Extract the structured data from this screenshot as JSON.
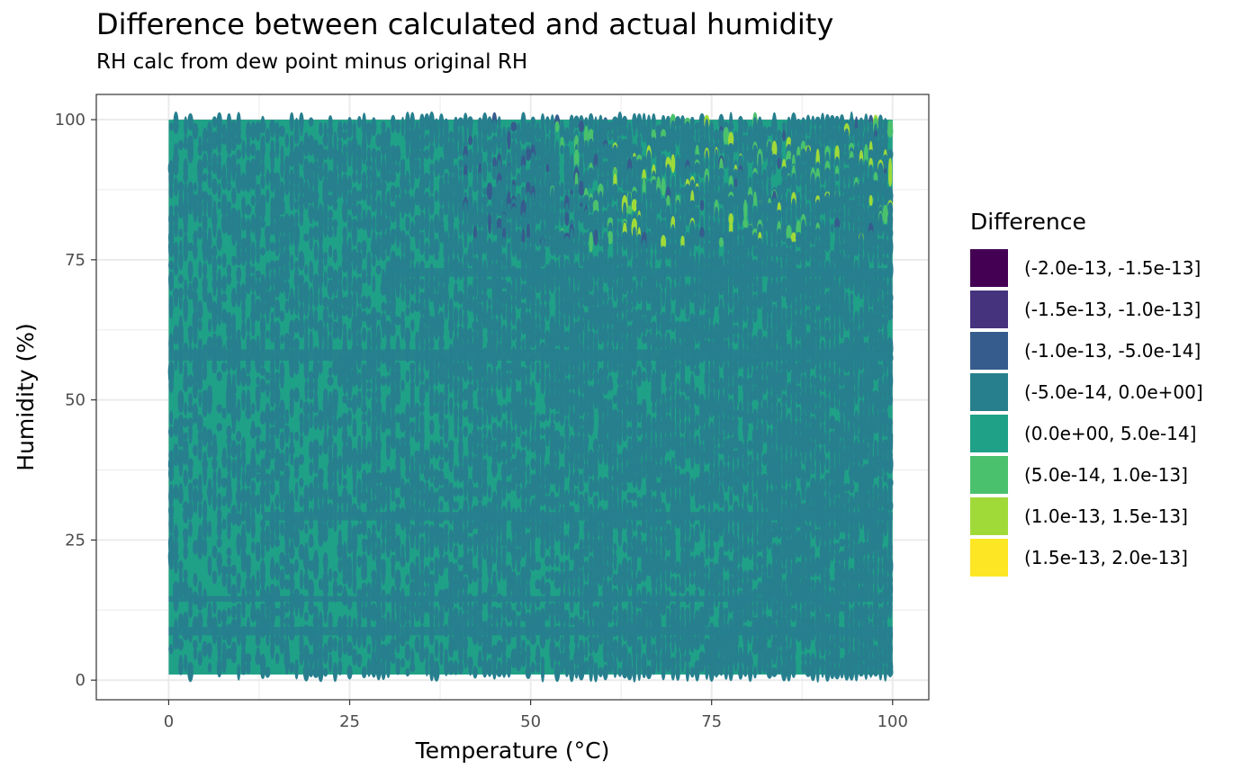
{
  "chart_data": {
    "type": "heatmap",
    "title": "Difference between calculated and actual humidity",
    "subtitle": "RH calc from dew point minus original RH",
    "xlabel": "Temperature (°C)",
    "ylabel": "Humidity (%)",
    "xlim": [
      -10,
      105
    ],
    "ylim": [
      -3.5,
      104.5
    ],
    "data_extent": {
      "x": [
        0,
        100
      ],
      "y": [
        1,
        100
      ]
    },
    "x_ticks": [
      0,
      25,
      50,
      75,
      100
    ],
    "y_ticks": [
      0,
      25,
      50,
      75,
      100
    ],
    "x_tick_labels": [
      "0",
      "25",
      "50",
      "75",
      "100"
    ],
    "y_tick_labels": [
      "0",
      "25",
      "50",
      "75",
      "100"
    ],
    "grid": true,
    "legend": {
      "title": "Difference",
      "position": "right",
      "bins": [
        {
          "label": "(-2.0e-13, -1.5e-13]",
          "color": "#440154"
        },
        {
          "label": "(-1.5e-13, -1.0e-13]",
          "color": "#46337E"
        },
        {
          "label": "(-1.0e-13, -5.0e-14]",
          "color": "#365C8D"
        },
        {
          "label": "(-5.0e-14, 0.0e+00]",
          "color": "#277F8E"
        },
        {
          "label": "(0.0e+00, 5.0e-14]",
          "color": "#1FA187"
        },
        {
          "label": "(5.0e-14, 1.0e-13]",
          "color": "#4AC16D"
        },
        {
          "label": "(1.0e-13, 1.5e-13]",
          "color": "#A0DA39"
        },
        {
          "label": "(1.5e-13, 2.0e-13]",
          "color": "#FDE725"
        }
      ]
    },
    "stripes_dominant_bin_4": [
      {
        "y_from": 57,
        "y_to": 59,
        "x_from": 0,
        "x_to": 100
      },
      {
        "y_from": 28.5,
        "y_to": 30,
        "x_from": 13,
        "x_to": 100
      },
      {
        "y_from": 8,
        "y_to": 9.5,
        "x_from": 0,
        "x_to": 100
      },
      {
        "y_from": 72,
        "y_to": 73.5,
        "x_from": 30,
        "x_to": 100
      },
      {
        "y_from": 14,
        "y_to": 15,
        "x_from": 0,
        "x_to": 100
      }
    ]
  }
}
